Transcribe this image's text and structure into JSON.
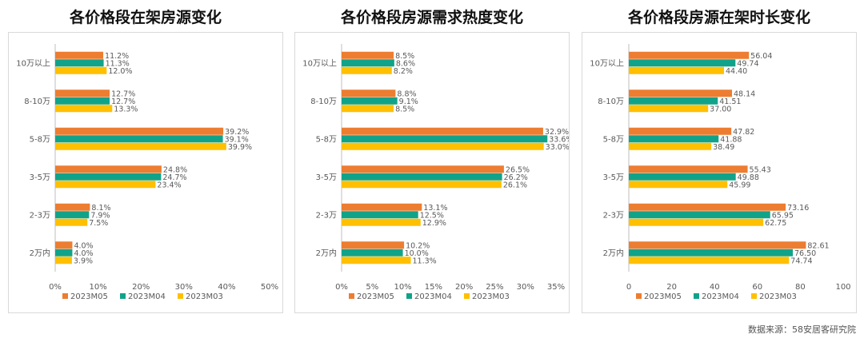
{
  "source_note": "数据来源：58安居客研究院",
  "colors": {
    "M05": "#ED7D31",
    "M04": "#11A38A",
    "M03": "#FFC000"
  },
  "chart_data": [
    {
      "type": "bar",
      "orientation": "horizontal",
      "title": "各价格段在架房源变化",
      "categories": [
        "10万以上",
        "8-10万",
        "5-8万",
        "3-5万",
        "2-3万",
        "2万内"
      ],
      "series": [
        {
          "name": "2023M05",
          "values": [
            11.2,
            12.7,
            39.2,
            24.8,
            8.1,
            4.0
          ],
          "labels": [
            "11.2%",
            "12.7%",
            "39.2%",
            "24.8%",
            "8.1%",
            "4.0%"
          ]
        },
        {
          "name": "2023M04",
          "values": [
            11.3,
            12.7,
            39.1,
            24.7,
            7.9,
            4.0
          ],
          "labels": [
            "11.3%",
            "12.7%",
            "39.1%",
            "24.7%",
            "7.9%",
            "4.0%"
          ]
        },
        {
          "name": "2023M03",
          "values": [
            12.0,
            13.3,
            39.9,
            23.4,
            7.5,
            3.9
          ],
          "labels": [
            "12.0%",
            "13.3%",
            "39.9%",
            "23.4%",
            "7.5%",
            "3.9%"
          ]
        }
      ],
      "xlim": [
        0,
        50
      ],
      "ticks": [
        0,
        10,
        20,
        30,
        40,
        50
      ],
      "tick_labels": [
        "0%",
        "10%",
        "20%",
        "30%",
        "40%",
        "50%"
      ],
      "legend_position": "bottom",
      "grid": false
    },
    {
      "type": "bar",
      "orientation": "horizontal",
      "title": "各价格段房源需求热度变化",
      "categories": [
        "10万以上",
        "8-10万",
        "5-8万",
        "3-5万",
        "2-3万",
        "2万内"
      ],
      "series": [
        {
          "name": "2023M05",
          "values": [
            8.5,
            8.8,
            32.9,
            26.5,
            13.1,
            10.2
          ],
          "labels": [
            "8.5%",
            "8.8%",
            "32.9%",
            "26.5%",
            "13.1%",
            "10.2%"
          ]
        },
        {
          "name": "2023M04",
          "values": [
            8.6,
            9.1,
            33.6,
            26.2,
            12.5,
            10.0
          ],
          "labels": [
            "8.6%",
            "9.1%",
            "33.6%",
            "26.2%",
            "12.5%",
            "10.0%"
          ]
        },
        {
          "name": "2023M03",
          "values": [
            8.2,
            8.5,
            33.0,
            26.1,
            12.9,
            11.3
          ],
          "labels": [
            "8.2%",
            "8.5%",
            "33.0%",
            "26.1%",
            "12.9%",
            "11.3%"
          ]
        }
      ],
      "xlim": [
        0,
        35
      ],
      "ticks": [
        0,
        5,
        10,
        15,
        20,
        25,
        30,
        35
      ],
      "tick_labels": [
        "0%",
        "5%",
        "10%",
        "15%",
        "20%",
        "25%",
        "30%",
        "35%"
      ],
      "legend_position": "bottom",
      "grid": false
    },
    {
      "type": "bar",
      "orientation": "horizontal",
      "title": "各价格段房源在架时长变化",
      "categories": [
        "10万以上",
        "8-10万",
        "5-8万",
        "3-5万",
        "2-3万",
        "2万内"
      ],
      "series": [
        {
          "name": "2023M05",
          "values": [
            56.04,
            48.14,
            47.82,
            55.43,
            73.16,
            82.61
          ],
          "labels": [
            "56.04",
            "48.14",
            "47.82",
            "55.43",
            "73.16",
            "82.61"
          ]
        },
        {
          "name": "2023M04",
          "values": [
            49.74,
            41.51,
            41.88,
            49.88,
            65.95,
            76.5
          ],
          "labels": [
            "49.74",
            "41.51",
            "41.88",
            "49.88",
            "65.95",
            "76.50"
          ]
        },
        {
          "name": "2023M03",
          "values": [
            44.4,
            37.0,
            38.49,
            45.99,
            62.75,
            74.74
          ],
          "labels": [
            "44.40",
            "37.00",
            "38.49",
            "45.99",
            "62.75",
            "74.74"
          ]
        }
      ],
      "xlim": [
        0,
        100
      ],
      "ticks": [
        0,
        20,
        40,
        60,
        80,
        100
      ],
      "tick_labels": [
        "0",
        "20",
        "40",
        "60",
        "80",
        "100"
      ],
      "legend_position": "bottom",
      "grid": false
    }
  ]
}
